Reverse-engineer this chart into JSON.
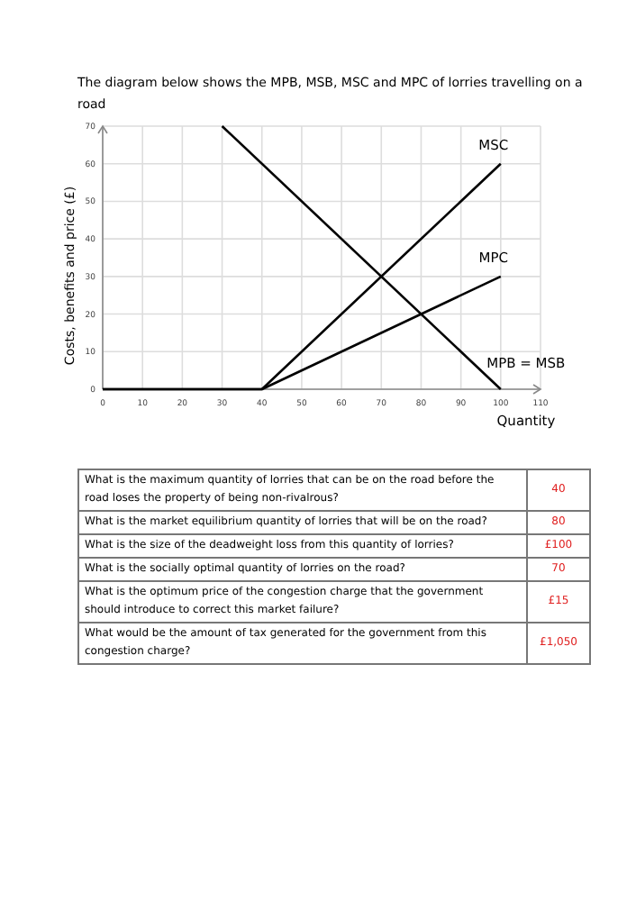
{
  "chart_data": [
    {
      "type": "line",
      "title": "The diagram below shows the MPB, MSB, MSC and MPC of lorries travelling on a road",
      "xlabel": "Quantity",
      "ylabel": "Costs, benefits and price (£)",
      "series": [
        {
          "name": "MSC",
          "color": "#000000",
          "x": [
            0,
            40,
            100
          ],
          "values": [
            0,
            0,
            60
          ]
        },
        {
          "name": "MPC",
          "color": "#000000",
          "x": [
            0,
            40,
            100
          ],
          "values": [
            0,
            0,
            30
          ]
        },
        {
          "name": "MPB = MSB",
          "color": "#000000",
          "x": [
            30,
            100
          ],
          "values": [
            70,
            0
          ]
        }
      ],
      "xlim": [
        0,
        110
      ],
      "xticks": [
        0,
        10,
        20,
        30,
        40,
        50,
        60,
        70,
        80,
        90,
        100,
        110
      ],
      "ylim": [
        0,
        70
      ],
      "yticks": [
        0,
        10,
        20,
        30,
        40,
        50,
        60,
        70
      ],
      "grid": true,
      "marker": "none",
      "line_style": "solid"
    },
    {
      "type": "other",
      "categories": [
        "What is the maximum quantity of lorries that can be on the road before the road loses the property of being non-rivalrous?",
        "What is the market equilibrium quantity of lorries that will be on the road?",
        "What is the size of the deadweight loss from this quantity of lorries?",
        "What is the socially optimal quantity of lorries on the road?",
        "What is the optimum price of the congestion charge that the government should introduce to correct this market failure?",
        "What would be the amount of tax generated for the government from this congestion charge?"
      ],
      "value_labels": [
        "40",
        "80",
        "£100",
        "70",
        "£15",
        "£1,050"
      ]
    }
  ]
}
